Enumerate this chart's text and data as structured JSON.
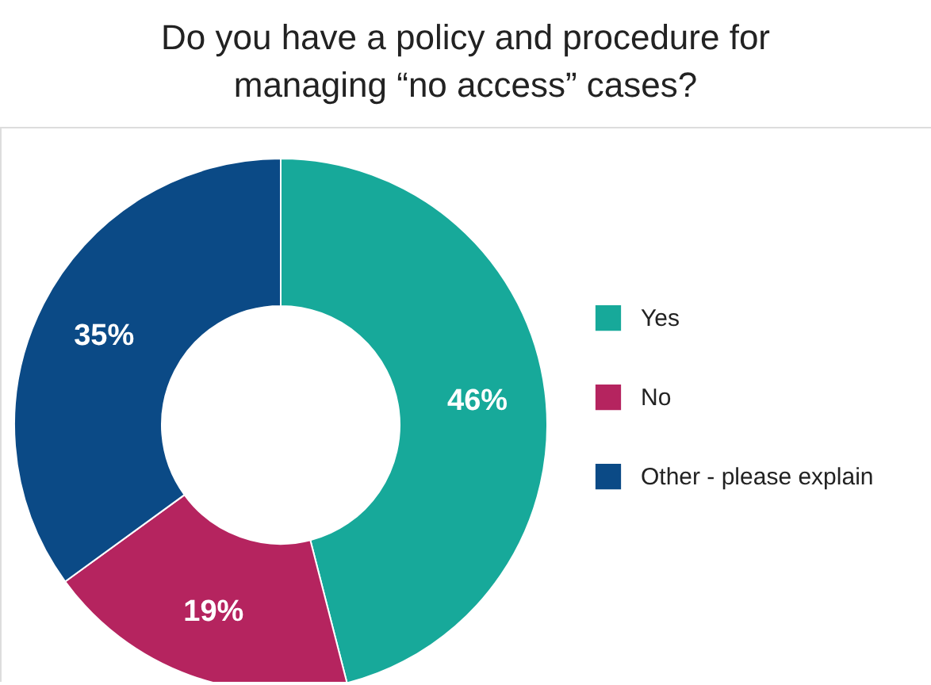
{
  "chart_data": {
    "type": "donut",
    "title": [
      "Do you have a policy and procedure for",
      "managing “no access” cases?"
    ],
    "categories": [
      "Yes",
      "No",
      "Other - please explain"
    ],
    "values": [
      46,
      19,
      35
    ],
    "colors": [
      "#17a99a",
      "#b5245f",
      "#0b4a86"
    ],
    "value_labels": [
      "46%",
      "19%",
      "35%"
    ],
    "legend": "right"
  }
}
